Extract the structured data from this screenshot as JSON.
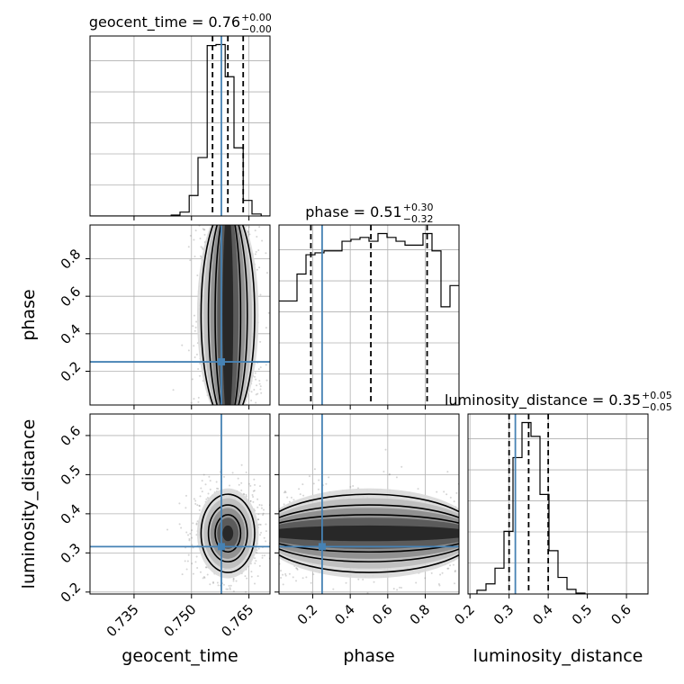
{
  "chart_data": {
    "type": "corner",
    "truth_color": "#4682b4",
    "line_color": "#000000",
    "grid": true,
    "parameters": [
      "geocent_time",
      "phase",
      "luminosity_distance"
    ],
    "ranges": {
      "geocent_time": [
        0.7235,
        0.7705
      ],
      "phase": [
        0.02,
        0.98
      ],
      "luminosity_distance": [
        0.195,
        0.655
      ]
    },
    "ticks": {
      "geocent_time": {
        "values": [
          0.735,
          0.75,
          0.765
        ],
        "labels": [
          "0.735",
          "0.750",
          "0.765"
        ]
      },
      "phase": {
        "values": [
          0.2,
          0.4,
          0.6,
          0.8
        ],
        "labels": [
          "0.2",
          "0.4",
          "0.6",
          "0.8"
        ]
      },
      "luminosity_distance": {
        "values": [
          0.2,
          0.3,
          0.4,
          0.5,
          0.6
        ],
        "labels": [
          "0.2",
          "0.3",
          "0.4",
          "0.5",
          "0.6"
        ]
      }
    },
    "row_tick_labels": {
      "phase": [
        "0.2",
        "0.4",
        "0.6",
        "0.8"
      ],
      "luminosity_distance": [
        "0.2",
        "0.3",
        "0.4",
        "0.5",
        "0.6"
      ]
    },
    "truths": {
      "geocent_time": 0.7578,
      "phase": 0.25,
      "luminosity_distance": 0.316
    },
    "titles": [
      {
        "parameter": "geocent_time",
        "text": "geocent_time = 0.76",
        "plus": "+0.00",
        "minus": "−0.00"
      },
      {
        "parameter": "phase",
        "text": "phase = 0.51",
        "plus": "+0.30",
        "minus": "−0.32"
      },
      {
        "parameter": "luminosity_distance",
        "text": "luminosity_distance = 0.35",
        "plus": "+0.05",
        "minus": "−0.05"
      }
    ],
    "quantile_lines": {
      "geocent_time": [
        0.7555,
        0.7595,
        0.7635
      ],
      "phase": [
        0.19,
        0.51,
        0.81
      ],
      "luminosity_distance": [
        0.3,
        0.35,
        0.4
      ]
    },
    "histograms": {
      "geocent_time": {
        "edges": [
          0.7235,
          0.7259,
          0.7282,
          0.7306,
          0.7329,
          0.7353,
          0.7376,
          0.74,
          0.7423,
          0.7447,
          0.747,
          0.7494,
          0.7517,
          0.7541,
          0.7564,
          0.7588,
          0.7611,
          0.7635,
          0.7658,
          0.7682,
          0.7705
        ],
        "counts": [
          0,
          0,
          0,
          0,
          0,
          0,
          0,
          0,
          0,
          1,
          4,
          21,
          60,
          175,
          176,
          143,
          70,
          16,
          2,
          0
        ]
      },
      "phase": {
        "edges": [
          0.02,
          0.068,
          0.116,
          0.164,
          0.212,
          0.26,
          0.308,
          0.356,
          0.404,
          0.452,
          0.5,
          0.548,
          0.596,
          0.644,
          0.692,
          0.74,
          0.788,
          0.836,
          0.884,
          0.932,
          0.98
        ],
        "counts": [
          54,
          54,
          68,
          78,
          79,
          80,
          80,
          85,
          86,
          87,
          85,
          89,
          87,
          85,
          83,
          83,
          89,
          80,
          51,
          62
        ]
      },
      "luminosity_distance": {
        "edges": [
          0.195,
          0.218,
          0.241,
          0.264,
          0.287,
          0.31,
          0.333,
          0.356,
          0.379,
          0.402,
          0.425,
          0.448,
          0.471,
          0.494,
          0.517,
          0.54,
          0.563,
          0.586,
          0.609,
          0.632,
          0.655
        ],
        "counts": [
          0,
          4,
          11,
          28,
          68,
          148,
          186,
          171,
          108,
          47,
          18,
          5,
          1,
          0,
          0,
          0,
          0,
          0,
          0,
          0
        ]
      }
    },
    "posterior_2d": {
      "phase_vs_geocent_time": {
        "center": [
          0.7595,
          0.5
        ],
        "spread": [
          0.0035,
          0.5
        ],
        "uniform_axis": "phase"
      },
      "luminosity_distance_vs_geocent_time": {
        "center": [
          0.7595,
          0.35
        ],
        "spread": [
          0.0035,
          0.05
        ]
      },
      "luminosity_distance_vs_phase": {
        "center": [
          0.5,
          0.35
        ],
        "spread": [
          0.5,
          0.05
        ],
        "uniform_axis": "phase"
      }
    }
  }
}
